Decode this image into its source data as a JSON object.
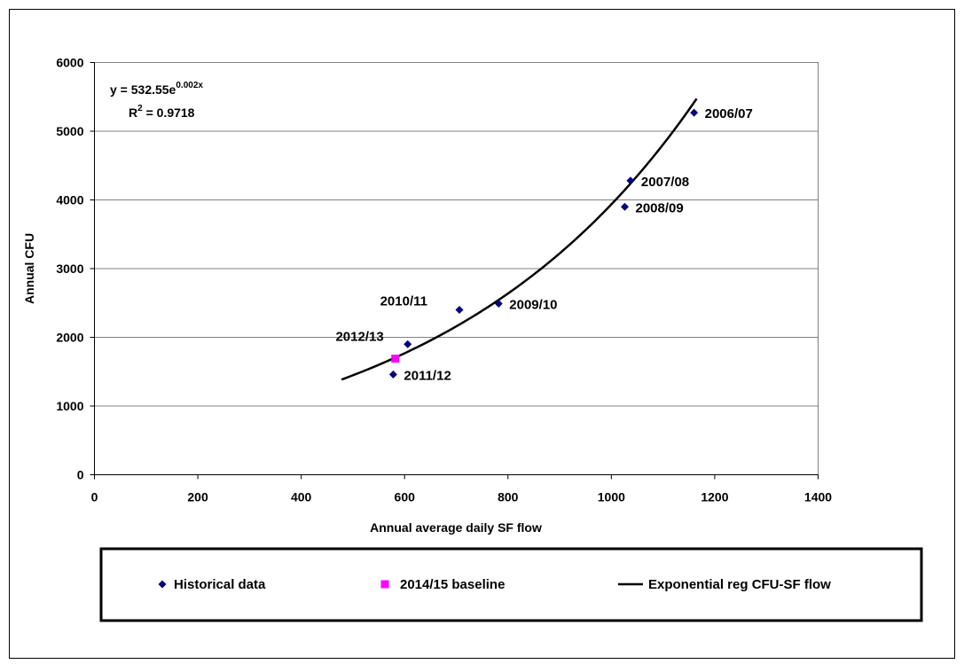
{
  "chart_data": {
    "type": "scatter",
    "xlabel": "Annual average daily SF flow",
    "ylabel": "Annual CFU",
    "xlim": [
      0,
      1400
    ],
    "ylim": [
      0,
      6000
    ],
    "x_ticks": [
      0,
      200,
      400,
      600,
      800,
      1000,
      1200,
      1400
    ],
    "y_ticks": [
      0,
      1000,
      2000,
      3000,
      4000,
      5000,
      6000
    ],
    "grid": "horizontal",
    "legend_position": "bottom",
    "series": [
      {
        "name": "Historical data",
        "marker": "diamond",
        "color": "#000080",
        "points": [
          {
            "x": 1160,
            "y": 5270,
            "label": "2006/07"
          },
          {
            "x": 1037,
            "y": 4280,
            "label": "2007/08"
          },
          {
            "x": 1026,
            "y": 3900,
            "label": "2008/09"
          },
          {
            "x": 782,
            "y": 2490,
            "label": "2009/10"
          },
          {
            "x": 706,
            "y": 2400,
            "label": "2010/11"
          },
          {
            "x": 578,
            "y": 1460,
            "label": "2011/12"
          },
          {
            "x": 606,
            "y": 1900,
            "label": "2012/13"
          }
        ]
      },
      {
        "name": "2014/15 baseline",
        "marker": "square",
        "color": "#ff00ff",
        "points": [
          {
            "x": 582,
            "y": 1690
          }
        ]
      },
      {
        "name": "Exponential reg CFU-SF flow",
        "type": "line",
        "color": "#000000",
        "x_range": [
          478,
          1165
        ],
        "equation": {
          "a": 532.55,
          "b": 0.002
        }
      }
    ],
    "equation_label": {
      "prefix": "y = 532.55e",
      "exponent": "0.002x",
      "r2_prefix": "R",
      "r2_sup": "2",
      "r2_value": " = 0.9718"
    }
  }
}
